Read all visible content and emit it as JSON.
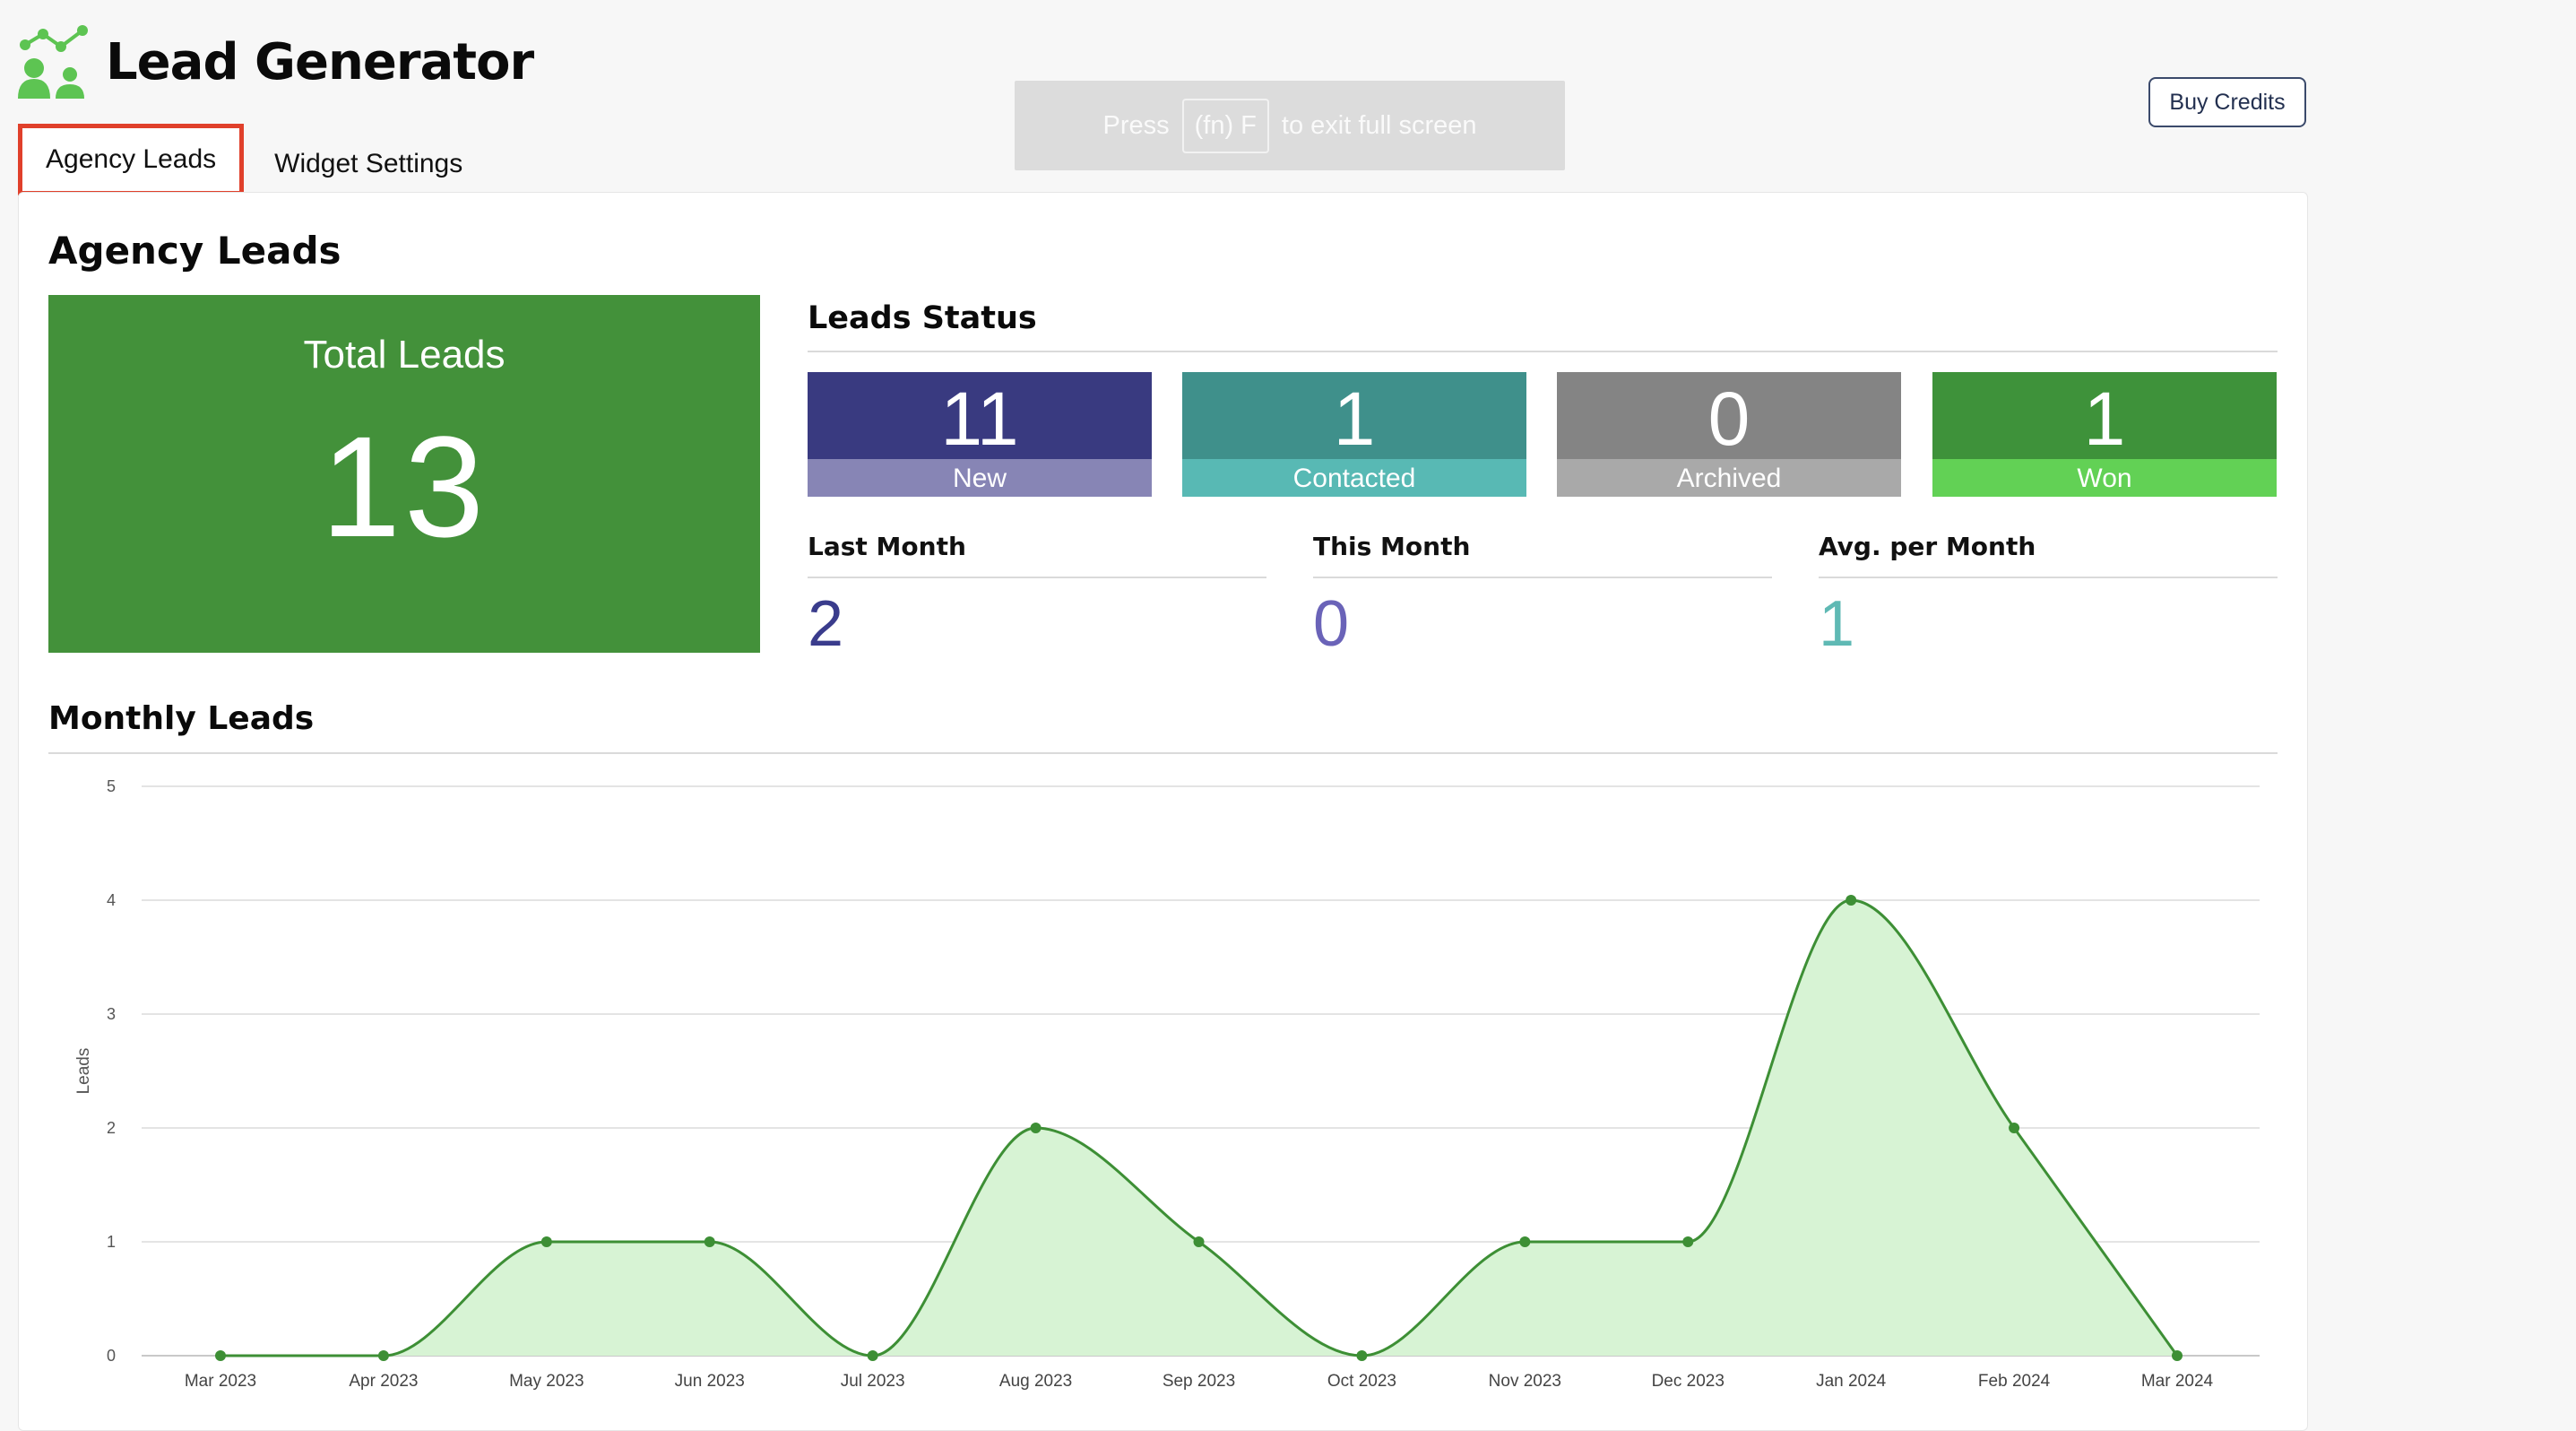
{
  "app": {
    "title": "Lead Generator",
    "logo_icon": "people-network-icon"
  },
  "tabs": [
    {
      "label": "Agency Leads",
      "active": true
    },
    {
      "label": "Widget Settings",
      "active": false
    }
  ],
  "fullscreen_toast": {
    "press": "Press",
    "key": "(fn) F",
    "rest": "to exit full screen"
  },
  "buy_credits_label": "Buy Credits",
  "page": {
    "heading": "Agency Leads",
    "total": {
      "label": "Total Leads",
      "value": "13"
    },
    "status": {
      "title": "Leads Status",
      "items": [
        {
          "value": "11",
          "label": "New",
          "color_top": "#393a80",
          "color_bottom": "#8785b5"
        },
        {
          "value": "1",
          "label": "Contacted",
          "color_top": "#3f908b",
          "color_bottom": "#58b9b4"
        },
        {
          "value": "0",
          "label": "Archived",
          "color_top": "#848484",
          "color_bottom": "#a9a9a9"
        },
        {
          "value": "1",
          "label": "Won",
          "color_top": "#3e923a",
          "color_bottom": "#62d155"
        }
      ]
    },
    "metrics": [
      {
        "label": "Last Month",
        "value": "2",
        "color": "#3a3c8c"
      },
      {
        "label": "This Month",
        "value": "0",
        "color": "#6a63b8"
      },
      {
        "label": "Avg. per Month",
        "value": "1",
        "color": "#5fb9b4"
      }
    ],
    "monthly_title": "Monthly Leads"
  },
  "chart_data": {
    "type": "area",
    "categories": [
      "Mar 2023",
      "Apr 2023",
      "May 2023",
      "Jun 2023",
      "Jul 2023",
      "Aug 2023",
      "Sep 2023",
      "Oct 2023",
      "Nov 2023",
      "Dec 2023",
      "Jan 2024",
      "Feb 2024",
      "Mar 2024"
    ],
    "values": [
      0,
      0,
      1,
      1,
      0,
      2,
      1,
      0,
      1,
      1,
      4,
      2,
      0
    ],
    "ylabel": "Leads",
    "ylim": [
      0,
      5
    ],
    "yticks": [
      "0",
      "1",
      "2",
      "3",
      "4",
      "5"
    ],
    "grid": true,
    "line_color": "#3d8f35",
    "fill_color": "#d7f3d4"
  }
}
